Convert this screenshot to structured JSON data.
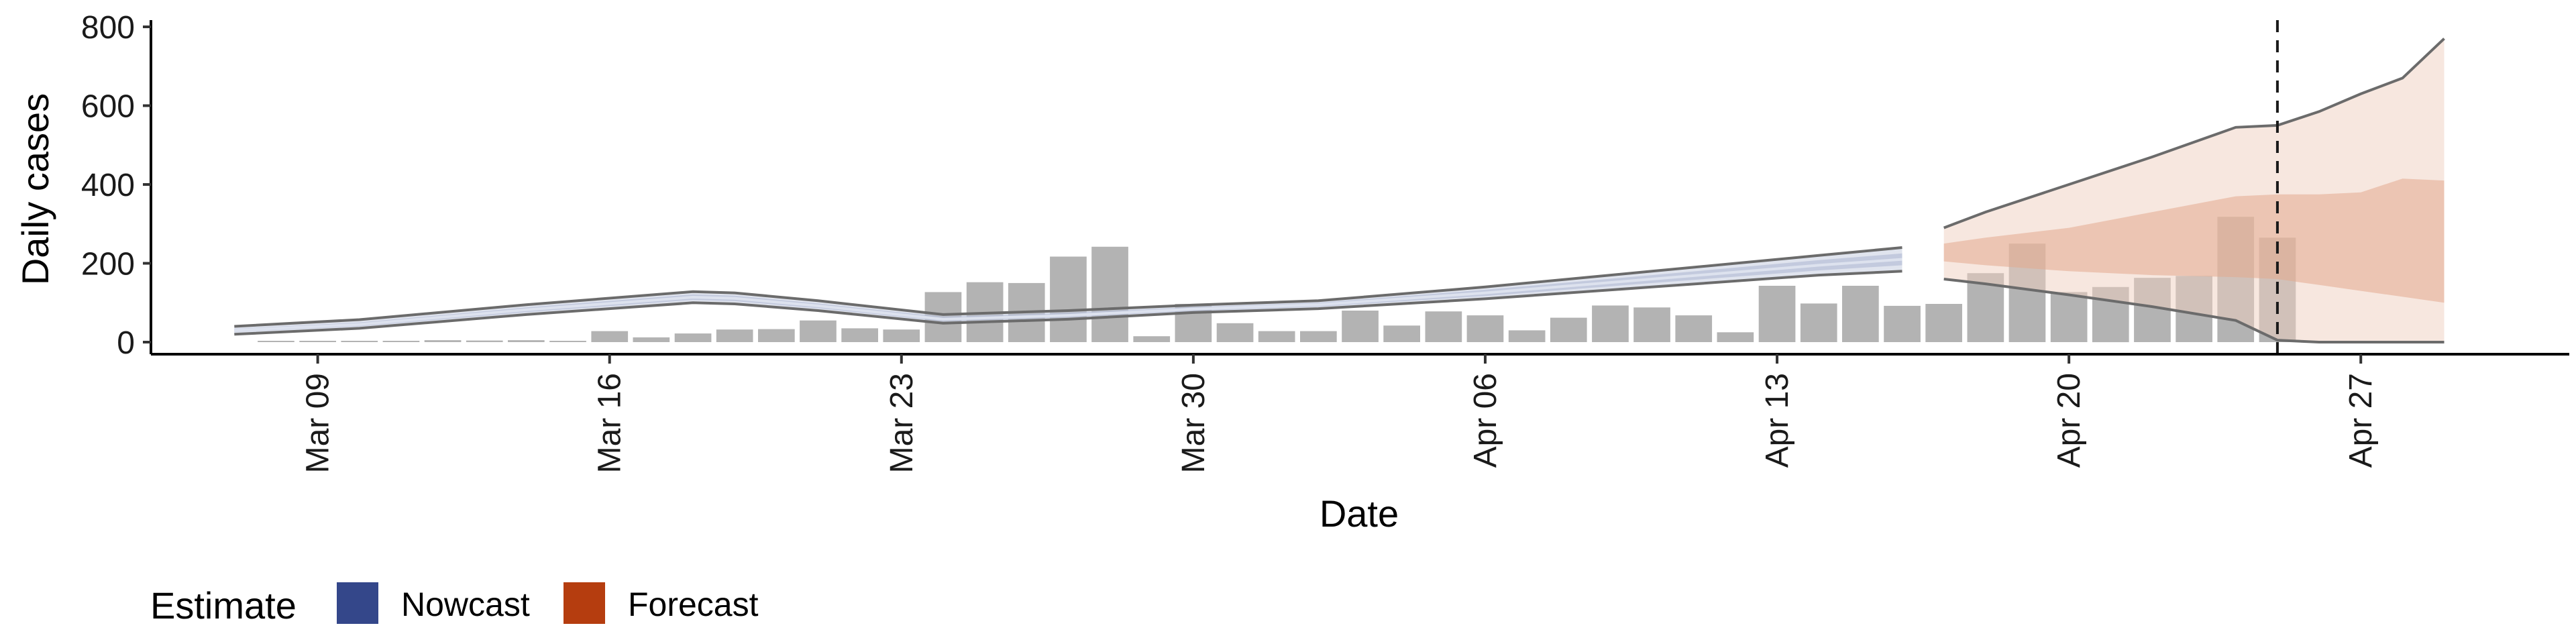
{
  "chart_data": {
    "type": "bar",
    "title": "",
    "xlabel": "Date",
    "ylabel": "Daily cases",
    "ylim": [
      0,
      800
    ],
    "yticks": [
      0,
      200,
      400,
      600,
      800
    ],
    "xlim": [
      "2020-03-05",
      "2020-05-02"
    ],
    "xticks": [
      {
        "date": "2020-03-09",
        "label": "Mar 09"
      },
      {
        "date": "2020-03-16",
        "label": "Mar 16"
      },
      {
        "date": "2020-03-23",
        "label": "Mar 23"
      },
      {
        "date": "2020-03-30",
        "label": "Mar 30"
      },
      {
        "date": "2020-04-06",
        "label": "Apr 06"
      },
      {
        "date": "2020-04-13",
        "label": "Apr 13"
      },
      {
        "date": "2020-04-20",
        "label": "Apr 20"
      },
      {
        "date": "2020-04-27",
        "label": "Apr 27"
      }
    ],
    "bars": {
      "color": "#b3b3b3",
      "dates": [
        "2020-03-08",
        "2020-03-09",
        "2020-03-10",
        "2020-03-11",
        "2020-03-12",
        "2020-03-13",
        "2020-03-14",
        "2020-03-15",
        "2020-03-16",
        "2020-03-17",
        "2020-03-18",
        "2020-03-19",
        "2020-03-20",
        "2020-03-21",
        "2020-03-22",
        "2020-03-23",
        "2020-03-24",
        "2020-03-25",
        "2020-03-26",
        "2020-03-27",
        "2020-03-28",
        "2020-03-29",
        "2020-03-30",
        "2020-03-31",
        "2020-04-01",
        "2020-04-02",
        "2020-04-03",
        "2020-04-04",
        "2020-04-05",
        "2020-04-06",
        "2020-04-07",
        "2020-04-08",
        "2020-04-09",
        "2020-04-10",
        "2020-04-11",
        "2020-04-12",
        "2020-04-13",
        "2020-04-14",
        "2020-04-15",
        "2020-04-16",
        "2020-04-17",
        "2020-04-18",
        "2020-04-19",
        "2020-04-20",
        "2020-04-21",
        "2020-04-22",
        "2020-04-23",
        "2020-04-24",
        "2020-04-25"
      ],
      "values": [
        1,
        1,
        1,
        0,
        5,
        4,
        5,
        0,
        28,
        12,
        22,
        32,
        33,
        55,
        35,
        32,
        127,
        152,
        150,
        217,
        242,
        15,
        97,
        48,
        28,
        28,
        80,
        42,
        78,
        68,
        30,
        62,
        93,
        88,
        68,
        25,
        143,
        98,
        143,
        92,
        97,
        175,
        250,
        127,
        140,
        163,
        168,
        318,
        265
      ]
    },
    "series": [
      {
        "name": "Nowcast",
        "color": "#3c4f8a",
        "start": "2020-03-07",
        "end": "2020-04-16",
        "dates": [
          "2020-03-07",
          "2020-03-10",
          "2020-03-14",
          "2020-03-18",
          "2020-03-19",
          "2020-03-21",
          "2020-03-24",
          "2020-03-27",
          "2020-03-30",
          "2020-04-02",
          "2020-04-06",
          "2020-04-10",
          "2020-04-14",
          "2020-04-16"
        ],
        "upper": [
          40,
          57,
          95,
          128,
          125,
          105,
          70,
          80,
          94,
          105,
          140,
          180,
          220,
          240
        ],
        "lower": [
          20,
          35,
          70,
          100,
          97,
          80,
          48,
          58,
          75,
          85,
          110,
          140,
          170,
          180
        ],
        "median": [
          30,
          45,
          82,
          114,
          111,
          92,
          58,
          68,
          84,
          95,
          125,
          160,
          195,
          210
        ],
        "inner_upper": [
          34,
          50,
          88,
          121,
          118,
          98,
          64,
          74,
          89,
          100,
          133,
          170,
          208,
          225
        ],
        "inner_lower": [
          26,
          40,
          76,
          107,
          104,
          86,
          53,
          63,
          79,
          90,
          117,
          150,
          182,
          195
        ]
      },
      {
        "name": "Forecast",
        "color": "#b53d0f",
        "start": "2020-04-17",
        "end": "2020-04-29",
        "dates": [
          "2020-04-17",
          "2020-04-18",
          "2020-04-20",
          "2020-04-22",
          "2020-04-24",
          "2020-04-25",
          "2020-04-26",
          "2020-04-27",
          "2020-04-28",
          "2020-04-29"
        ],
        "upper": [
          290,
          330,
          400,
          470,
          545,
          550,
          585,
          630,
          670,
          770
        ],
        "lower": [
          160,
          148,
          120,
          90,
          55,
          5,
          0,
          0,
          0,
          0
        ],
        "inner_upper": [
          250,
          265,
          290,
          330,
          370,
          375,
          375,
          380,
          415,
          410
        ],
        "inner_lower": [
          205,
          195,
          180,
          170,
          165,
          160,
          145,
          130,
          115,
          100
        ]
      }
    ],
    "vline": {
      "date": "2020-04-25",
      "style": "dashed"
    },
    "legend": {
      "title": "Estimate",
      "position": "bottom",
      "items": [
        {
          "label": "Nowcast",
          "color": "#34478a"
        },
        {
          "label": "Forecast",
          "color": "#b53d0f"
        }
      ]
    },
    "grid": false
  }
}
